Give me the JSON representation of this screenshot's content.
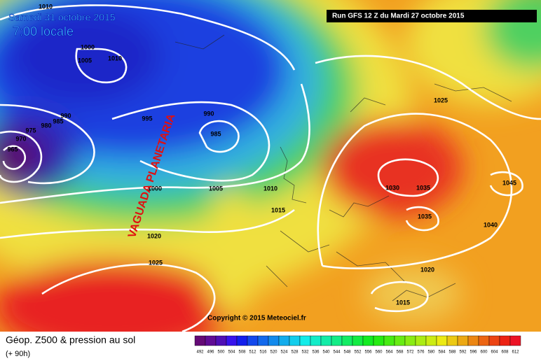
{
  "header": {
    "date": "Samedi 31 octobre 2015",
    "time": "7:00 locale",
    "run": "Run GFS 12 Z du Mardi 27 octobre 2015"
  },
  "annotation": "VAGUADA PLANETARIA",
  "isobar_labels": [
    1010,
    1000,
    1005,
    1010,
    990,
    985,
    980,
    975,
    970,
    965,
    995,
    990,
    985,
    1000,
    1005,
    1010,
    1015,
    1020,
    1025,
    1025,
    1030,
    1035,
    1045,
    1035,
    1040,
    1020,
    1015
  ],
  "copyright": "Copyright © 2015 Meteociel.fr",
  "footer": {
    "title": "Géop. Z500 & pression au sol",
    "lead": "(+ 90h)"
  },
  "legend": {
    "values": [
      492,
      496,
      500,
      504,
      508,
      512,
      516,
      520,
      524,
      528,
      532,
      536,
      540,
      544,
      548,
      552,
      556,
      560,
      564,
      568,
      572,
      576,
      580,
      584,
      588,
      592,
      596,
      600,
      604,
      608,
      612
    ]
  }
}
